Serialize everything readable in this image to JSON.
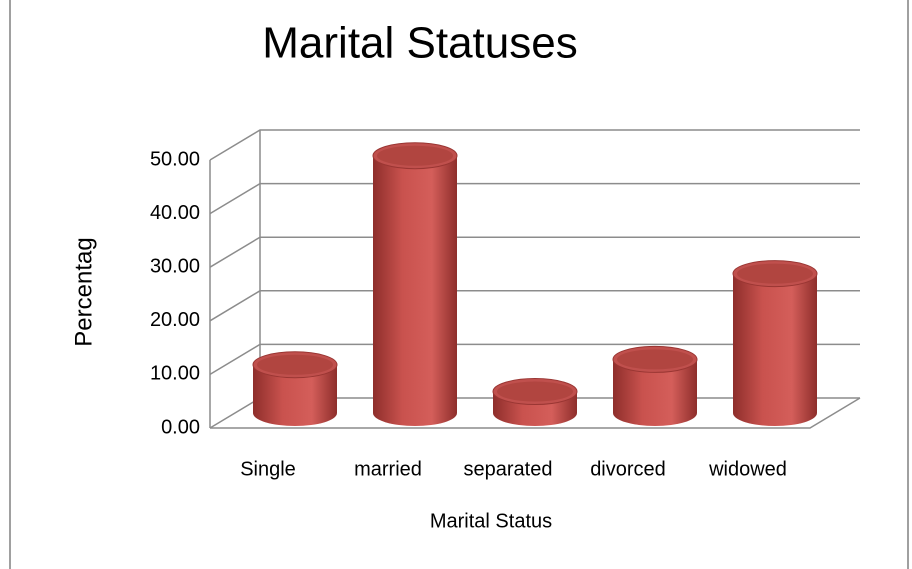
{
  "chart_data": {
    "type": "bar3d",
    "title": "Marital Statuses",
    "x_label": "Marital Status",
    "y_label": "Percentag",
    "categories": [
      "Single",
      "married",
      "separated",
      "divorced",
      "widowed"
    ],
    "values": [
      9,
      48,
      4,
      10,
      26
    ],
    "color": "#c0504d",
    "ylim": [
      0,
      50
    ],
    "yticks": [
      {
        "value": 0,
        "label": "0.00"
      },
      {
        "value": 10,
        "label": "10.00"
      },
      {
        "value": 20,
        "label": "20.00"
      },
      {
        "value": 30,
        "label": "30.00"
      },
      {
        "value": 40,
        "label": "40.00"
      },
      {
        "value": 50,
        "label": "50.00"
      }
    ],
    "grid": true
  }
}
